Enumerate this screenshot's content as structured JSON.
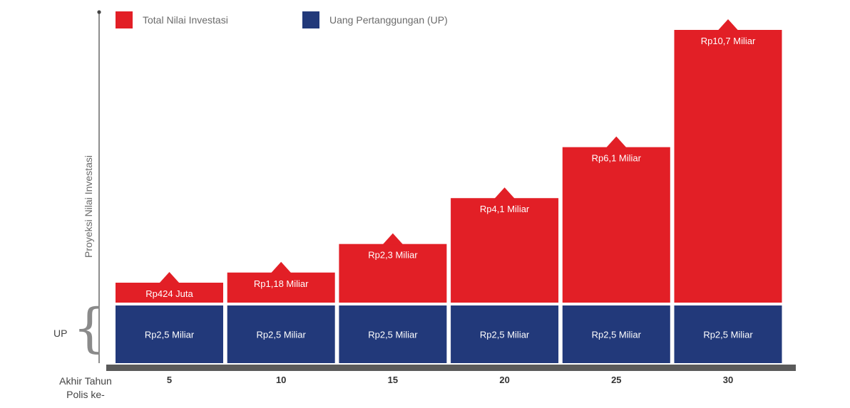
{
  "chart_data": {
    "type": "bar",
    "stacked": true,
    "ylabel": "Proyeksi Nilai Investasi",
    "xlabel": "Akhir Tahun\nPolis ke-",
    "categories": [
      "5",
      "10",
      "15",
      "20",
      "25",
      "30"
    ],
    "series": [
      {
        "name": "Uang Pertanggungan (UP)",
        "color": "#22397a",
        "values": [
          2.5,
          2.5,
          2.5,
          2.5,
          2.5,
          2.5
        ],
        "labels": [
          "Rp2,5 Miliar",
          "Rp2,5 Miliar",
          "Rp2,5 Miliar",
          "Rp2,5 Miliar",
          "Rp2,5 Miliar",
          "Rp2,5 Miliar"
        ]
      },
      {
        "name": "Total Nilai Investasi",
        "color": "#e21f26",
        "values": [
          0.424,
          1.18,
          2.3,
          4.1,
          6.1,
          10.7
        ],
        "labels": [
          "Rp424 Juta",
          "Rp1,18 Miliar",
          "Rp2,3 Miliar",
          "Rp4,1 Miliar",
          "Rp6,1 Miliar",
          "Rp10,7 Miliar"
        ]
      }
    ],
    "legend": "top-left",
    "grid": false
  },
  "bracket_label": "UP"
}
